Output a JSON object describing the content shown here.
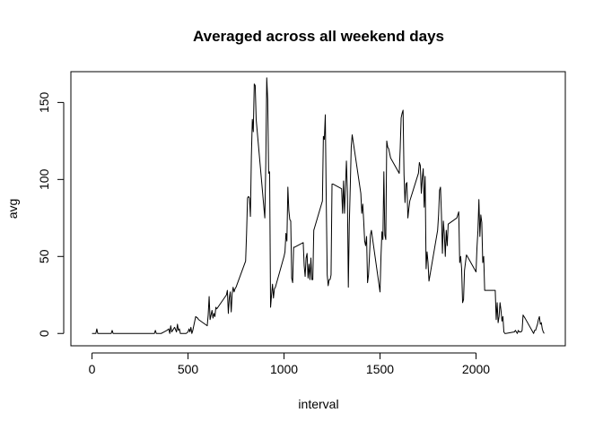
{
  "chart_data": {
    "type": "line",
    "title": "Averaged across all weekend days",
    "xlabel": "interval",
    "ylabel": "avg",
    "xlim": [
      -110,
      2465
    ],
    "ylim": [
      -8,
      170
    ],
    "xticks": [
      0,
      500,
      1000,
      1500,
      2000
    ],
    "yticks": [
      0,
      50,
      100,
      150
    ],
    "grid": false,
    "legend": "none",
    "series": [
      {
        "color": "#000000",
        "points": [
          [
            0,
            0
          ],
          [
            10,
            0
          ],
          [
            20,
            0
          ],
          [
            25,
            3
          ],
          [
            30,
            0
          ],
          [
            40,
            0
          ],
          [
            55,
            0
          ],
          [
            70,
            0
          ],
          [
            85,
            0
          ],
          [
            100,
            0
          ],
          [
            105,
            2
          ],
          [
            110,
            0
          ],
          [
            120,
            0
          ],
          [
            135,
            0
          ],
          [
            150,
            0
          ],
          [
            200,
            0
          ],
          [
            250,
            0
          ],
          [
            300,
            0
          ],
          [
            325,
            0
          ],
          [
            330,
            2
          ],
          [
            335,
            0
          ],
          [
            345,
            0
          ],
          [
            360,
            0
          ],
          [
            375,
            1
          ],
          [
            390,
            2
          ],
          [
            400,
            3
          ],
          [
            405,
            0
          ],
          [
            410,
            5
          ],
          [
            415,
            1
          ],
          [
            420,
            2
          ],
          [
            430,
            4
          ],
          [
            440,
            1
          ],
          [
            445,
            6
          ],
          [
            450,
            2
          ],
          [
            455,
            3
          ],
          [
            460,
            0
          ],
          [
            470,
            0
          ],
          [
            480,
            0
          ],
          [
            490,
            0
          ],
          [
            500,
            1
          ],
          [
            505,
            3
          ],
          [
            510,
            1
          ],
          [
            515,
            4
          ],
          [
            520,
            0
          ],
          [
            525,
            2
          ],
          [
            530,
            5
          ],
          [
            535,
            8
          ],
          [
            540,
            11
          ],
          [
            550,
            10
          ],
          [
            555,
            9
          ],
          [
            600,
            5
          ],
          [
            605,
            12
          ],
          [
            610,
            24
          ],
          [
            615,
            9
          ],
          [
            620,
            12
          ],
          [
            625,
            15
          ],
          [
            630,
            10
          ],
          [
            635,
            13
          ],
          [
            640,
            11
          ],
          [
            645,
            17
          ],
          [
            650,
            16
          ],
          [
            700,
            25
          ],
          [
            705,
            28
          ],
          [
            710,
            13
          ],
          [
            715,
            23
          ],
          [
            720,
            27
          ],
          [
            725,
            14
          ],
          [
            730,
            26
          ],
          [
            735,
            30
          ],
          [
            740,
            27
          ],
          [
            745,
            29
          ],
          [
            750,
            30
          ],
          [
            800,
            47
          ],
          [
            805,
            65
          ],
          [
            810,
            88
          ],
          [
            815,
            89
          ],
          [
            820,
            88
          ],
          [
            825,
            76
          ],
          [
            830,
            115
          ],
          [
            835,
            139
          ],
          [
            840,
            131
          ],
          [
            845,
            162
          ],
          [
            850,
            161
          ],
          [
            855,
            139
          ],
          [
            900,
            75
          ],
          [
            905,
            110
          ],
          [
            910,
            166
          ],
          [
            915,
            152
          ],
          [
            920,
            104
          ],
          [
            925,
            105
          ],
          [
            930,
            17
          ],
          [
            935,
            25
          ],
          [
            940,
            32
          ],
          [
            945,
            23
          ],
          [
            950,
            29
          ],
          [
            955,
            30
          ],
          [
            1000,
            50
          ],
          [
            1005,
            53
          ],
          [
            1010,
            65
          ],
          [
            1015,
            60
          ],
          [
            1020,
            95
          ],
          [
            1025,
            80
          ],
          [
            1030,
            74
          ],
          [
            1035,
            73
          ],
          [
            1040,
            36
          ],
          [
            1045,
            33
          ],
          [
            1050,
            56
          ],
          [
            1055,
            56
          ],
          [
            1100,
            59
          ],
          [
            1105,
            44
          ],
          [
            1110,
            37
          ],
          [
            1115,
            49
          ],
          [
            1120,
            52
          ],
          [
            1125,
            36
          ],
          [
            1130,
            45
          ],
          [
            1135,
            35
          ],
          [
            1140,
            49
          ],
          [
            1145,
            35
          ],
          [
            1150,
            35
          ],
          [
            1155,
            67
          ],
          [
            1200,
            86
          ],
          [
            1205,
            128
          ],
          [
            1210,
            126
          ],
          [
            1215,
            142
          ],
          [
            1220,
            86
          ],
          [
            1225,
            38
          ],
          [
            1230,
            31
          ],
          [
            1235,
            35
          ],
          [
            1240,
            35
          ],
          [
            1245,
            38
          ],
          [
            1250,
            97
          ],
          [
            1255,
            97
          ],
          [
            1300,
            94
          ],
          [
            1305,
            78
          ],
          [
            1310,
            99
          ],
          [
            1315,
            78
          ],
          [
            1320,
            95
          ],
          [
            1325,
            112
          ],
          [
            1330,
            92
          ],
          [
            1335,
            30
          ],
          [
            1340,
            71
          ],
          [
            1345,
            95
          ],
          [
            1350,
            121
          ],
          [
            1355,
            129
          ],
          [
            1400,
            91
          ],
          [
            1405,
            78
          ],
          [
            1410,
            84
          ],
          [
            1415,
            73
          ],
          [
            1420,
            60
          ],
          [
            1425,
            57
          ],
          [
            1430,
            63
          ],
          [
            1435,
            33
          ],
          [
            1440,
            38
          ],
          [
            1445,
            50
          ],
          [
            1450,
            64
          ],
          [
            1455,
            67
          ],
          [
            1500,
            27
          ],
          [
            1505,
            50
          ],
          [
            1510,
            66
          ],
          [
            1515,
            61
          ],
          [
            1520,
            105
          ],
          [
            1525,
            64
          ],
          [
            1530,
            61
          ],
          [
            1535,
            125
          ],
          [
            1540,
            121
          ],
          [
            1545,
            120
          ],
          [
            1550,
            117
          ],
          [
            1555,
            114
          ],
          [
            1600,
            104
          ],
          [
            1605,
            120
          ],
          [
            1610,
            140
          ],
          [
            1615,
            143
          ],
          [
            1620,
            145
          ],
          [
            1625,
            103
          ],
          [
            1630,
            85
          ],
          [
            1635,
            97
          ],
          [
            1640,
            98
          ],
          [
            1645,
            75
          ],
          [
            1650,
            81
          ],
          [
            1655,
            86
          ],
          [
            1700,
            104
          ],
          [
            1705,
            111
          ],
          [
            1710,
            109
          ],
          [
            1715,
            91
          ],
          [
            1720,
            101
          ],
          [
            1725,
            107
          ],
          [
            1730,
            82
          ],
          [
            1735,
            102
          ],
          [
            1740,
            42
          ],
          [
            1745,
            53
          ],
          [
            1750,
            46
          ],
          [
            1755,
            34
          ],
          [
            1800,
            67
          ],
          [
            1805,
            77
          ],
          [
            1810,
            93
          ],
          [
            1815,
            95
          ],
          [
            1820,
            77
          ],
          [
            1825,
            52
          ],
          [
            1830,
            73
          ],
          [
            1835,
            64
          ],
          [
            1840,
            50
          ],
          [
            1845,
            67
          ],
          [
            1850,
            57
          ],
          [
            1855,
            71
          ],
          [
            1900,
            75
          ],
          [
            1905,
            77
          ],
          [
            1910,
            79
          ],
          [
            1915,
            46
          ],
          [
            1920,
            50
          ],
          [
            1925,
            42
          ],
          [
            1930,
            20
          ],
          [
            1935,
            22
          ],
          [
            1940,
            41
          ],
          [
            1945,
            46
          ],
          [
            1950,
            51
          ],
          [
            1955,
            50
          ],
          [
            2000,
            40
          ],
          [
            2005,
            56
          ],
          [
            2010,
            67
          ],
          [
            2015,
            87
          ],
          [
            2020,
            63
          ],
          [
            2025,
            77
          ],
          [
            2030,
            72
          ],
          [
            2035,
            46
          ],
          [
            2040,
            50
          ],
          [
            2045,
            28
          ],
          [
            2050,
            28
          ],
          [
            2055,
            28
          ],
          [
            2100,
            28
          ],
          [
            2105,
            9
          ],
          [
            2110,
            20
          ],
          [
            2115,
            7
          ],
          [
            2120,
            11
          ],
          [
            2125,
            20
          ],
          [
            2130,
            15
          ],
          [
            2135,
            8
          ],
          [
            2140,
            11
          ],
          [
            2145,
            1
          ],
          [
            2150,
            0
          ],
          [
            2155,
            0
          ],
          [
            2200,
            1
          ],
          [
            2205,
            2
          ],
          [
            2210,
            1
          ],
          [
            2215,
            0
          ],
          [
            2220,
            2
          ],
          [
            2225,
            1
          ],
          [
            2230,
            1
          ],
          [
            2235,
            1
          ],
          [
            2240,
            2
          ],
          [
            2245,
            12
          ],
          [
            2250,
            11
          ],
          [
            2255,
            10
          ],
          [
            2300,
            0
          ],
          [
            2305,
            2
          ],
          [
            2310,
            2
          ],
          [
            2315,
            4
          ],
          [
            2320,
            6
          ],
          [
            2325,
            9
          ],
          [
            2330,
            11
          ],
          [
            2335,
            6
          ],
          [
            2340,
            7
          ],
          [
            2345,
            3
          ],
          [
            2350,
            1
          ],
          [
            2355,
            0
          ]
        ]
      }
    ]
  }
}
